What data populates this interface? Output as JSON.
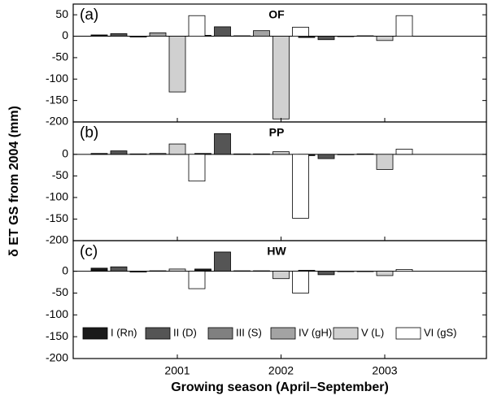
{
  "chart_data": [
    {
      "type": "bar",
      "panel_label": "(a)",
      "title": "OF",
      "ylim": [
        -200,
        75
      ],
      "yticks": [
        50,
        0,
        -50,
        -100,
        -150,
        -200
      ],
      "series": [
        {
          "color": "#1a1a1a",
          "values": [
            3,
            2,
            -3
          ]
        },
        {
          "color": "#555555",
          "values": [
            6,
            22,
            -8
          ]
        },
        {
          "color": "#808080",
          "values": [
            -2,
            1,
            -1
          ]
        },
        {
          "color": "#a3a3a3",
          "values": [
            8,
            13,
            1
          ]
        },
        {
          "color": "#d0d0d0",
          "values": [
            -130,
            -193,
            -10
          ]
        },
        {
          "color": "#ffffff",
          "values": [
            48,
            21,
            48
          ]
        }
      ]
    },
    {
      "type": "bar",
      "panel_label": "(b)",
      "title": "PP",
      "ylabel": "δ ET GS from 2004 (mm)",
      "ylim": [
        -200,
        75
      ],
      "yticks": [
        0,
        -50,
        -100,
        -150,
        -200
      ],
      "series": [
        {
          "color": "#1a1a1a",
          "values": [
            2,
            2,
            -3
          ]
        },
        {
          "color": "#555555",
          "values": [
            8,
            48,
            -10
          ]
        },
        {
          "color": "#808080",
          "values": [
            1,
            1,
            -1
          ]
        },
        {
          "color": "#a3a3a3",
          "values": [
            2,
            1,
            1
          ]
        },
        {
          "color": "#d0d0d0",
          "values": [
            24,
            6,
            -35
          ]
        },
        {
          "color": "#ffffff",
          "values": [
            -62,
            -148,
            12
          ]
        }
      ]
    },
    {
      "type": "bar",
      "panel_label": "(c)",
      "title": "HW",
      "xlabel": "Growing season (April–September)",
      "ylim": [
        -200,
        70
      ],
      "yticks": [
        0,
        -50,
        -100,
        -150,
        -200
      ],
      "categories": [
        "2001",
        "2002",
        "2003"
      ],
      "series": [
        {
          "name": "I (Rn)",
          "color": "#1a1a1a",
          "values": [
            7,
            5,
            2
          ]
        },
        {
          "name": "II (D)",
          "color": "#555555",
          "values": [
            10,
            44,
            -8
          ]
        },
        {
          "name": "III (S)",
          "color": "#808080",
          "values": [
            -2,
            1,
            -1
          ]
        },
        {
          "name": "IV (gH)",
          "color": "#a3a3a3",
          "values": [
            1,
            1,
            0
          ]
        },
        {
          "name": "V (L)",
          "color": "#d0d0d0",
          "values": [
            5,
            -17,
            -10
          ]
        },
        {
          "name": "VI (gS)",
          "color": "#ffffff",
          "values": [
            -40,
            -50,
            4
          ]
        }
      ]
    }
  ]
}
